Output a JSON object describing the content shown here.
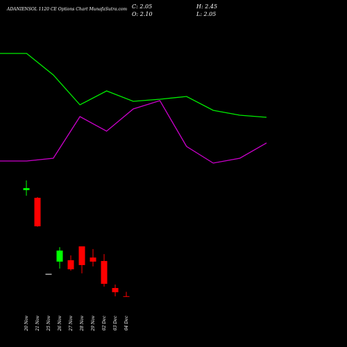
{
  "chart_data": [
    {
      "type": "candlestick",
      "title": "ADANIENSOL 1120 CE Options Chart MunafaSutra.com",
      "annotations": [
        "C: 2.05",
        "H: 2.45",
        "O: 2.10",
        "L: 2.05"
      ],
      "categories": [
        "20 Nov",
        "21 Nov",
        "25 Nov",
        "26 Nov",
        "27 Nov",
        "28 Nov",
        "29 Nov",
        "02 Dec",
        "03 Dec",
        "04 Dec"
      ],
      "open": [
        10.66,
        10.04,
        3.9,
        4.89,
        5.0,
        6.12,
        5.22,
        4.94,
        2.76,
        2.1
      ],
      "high": [
        11.44,
        10.1,
        3.9,
        6.06,
        5.39,
        6.12,
        5.9,
        5.5,
        3.04,
        2.45
      ],
      "low": [
        10.21,
        7.7,
        3.9,
        4.33,
        4.16,
        3.94,
        4.5,
        2.87,
        2.09,
        2.05
      ],
      "close": [
        10.82,
        7.74,
        3.9,
        5.78,
        4.27,
        4.61,
        4.89,
        3.1,
        2.42,
        2.05
      ],
      "up_color": "#00ff00",
      "down_color": "#ff0000",
      "flat_color": "#ffffff",
      "ylim": [
        -2,
        26
      ]
    },
    {
      "type": "line",
      "categories": [
        null,
        null,
        null,
        null,
        null,
        null,
        null,
        null,
        null,
        null,
        null
      ],
      "series": [
        {
          "color": "#00ee00",
          "values": [
            84.6,
            84.6,
            78.4,
            69.8,
            73.8,
            70.8,
            71.4,
            72.2,
            68.2,
            66.8,
            66.2
          ]
        },
        {
          "color": "#cc00cc",
          "values": [
            53.6,
            53.6,
            54.4,
            66.4,
            62.2,
            68.6,
            71,
            57.8,
            53,
            54.4,
            58.8
          ]
        }
      ],
      "ylim": [
        0,
        100
      ]
    }
  ]
}
